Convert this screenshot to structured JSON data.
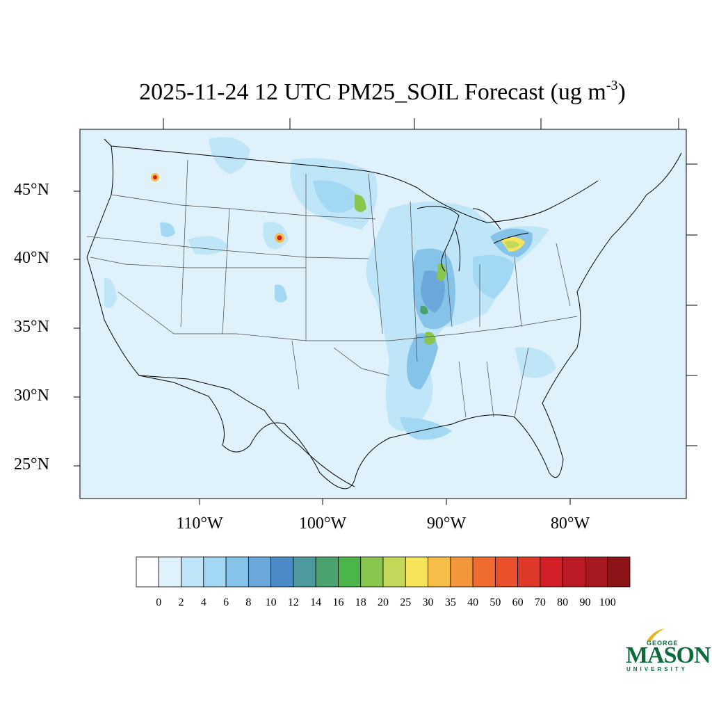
{
  "title": {
    "text": "2025-11-24 12 UTC PM25_SOIL Forecast (ug m",
    "superscript": "-3",
    "close": ")"
  },
  "map": {
    "background_color": "#dff1fb",
    "lat_labels": [
      "45°N",
      "40°N",
      "35°N",
      "30°N",
      "25°N"
    ],
    "lon_labels": [
      "110°W",
      "100°W",
      "90°W",
      "80°W"
    ]
  },
  "colorbar": {
    "levels": [
      "0",
      "2",
      "4",
      "6",
      "8",
      "10",
      "12",
      "14",
      "16",
      "18",
      "20",
      "25",
      "30",
      "35",
      "40",
      "50",
      "60",
      "70",
      "80",
      "90",
      "100"
    ],
    "colors": [
      "#ffffff",
      "#dff1fb",
      "#bfe6f8",
      "#a2d8f4",
      "#86c3e8",
      "#6aa8db",
      "#4a8bc8",
      "#4c9a9e",
      "#4aa36e",
      "#4bb54a",
      "#88c64e",
      "#c5d85a",
      "#f7e45a",
      "#f6bd48",
      "#f4963c",
      "#f06b2f",
      "#e8512b",
      "#de3828",
      "#d21f28",
      "#ba1b24",
      "#a61920",
      "#8c1419"
    ]
  },
  "logo": {
    "top_text": "GEORGE",
    "main_text": "MASON",
    "bottom_text": "UNIVERSITY"
  }
}
